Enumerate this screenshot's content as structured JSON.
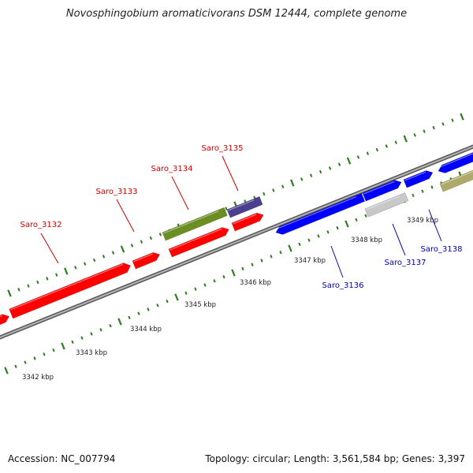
{
  "title": "Novosphingobium aromaticivorans DSM 12444, complete genome",
  "footer": {
    "accession": "Accession: NC_007794",
    "summary": "Topology: circular; Length: 3,561,584 bp; Genes: 3,397"
  },
  "colors": {
    "backbone": "#8a8a8a",
    "tick": "#2e7d1e",
    "forward_label": "#cc0000",
    "reverse_label": "#0000aa",
    "scale_text": "#222222"
  },
  "ruler_labels": [
    "3342 kbp",
    "3343 kbp",
    "3344 kbp",
    "3345 kbp",
    "3346 kbp",
    "3347 kbp",
    "3348 kbp",
    "3349 kbp"
  ],
  "features": [
    {
      "name": "",
      "color": "#ff0000"
    },
    {
      "name": "",
      "color": "#ff0000"
    },
    {
      "name": "",
      "color": "#ff0000"
    },
    {
      "name": "",
      "color": "#ff0000"
    },
    {
      "name": "",
      "color": "#ff0000"
    },
    {
      "name": "",
      "color": "#6b8e23"
    },
    {
      "name": "",
      "color": "#4b3f8f"
    },
    {
      "name": "",
      "color": "#0000ff"
    },
    {
      "name": "",
      "color": "#0000ff"
    },
    {
      "name": "",
      "color": "#0000ff"
    },
    {
      "name": "",
      "color": "#0000ff"
    },
    {
      "name": "",
      "color": "#c8c8c8"
    },
    {
      "name": "",
      "color": "#b0aa6a"
    }
  ],
  "gene_labels": [
    {
      "text": "Saro_3132",
      "strand": "forward"
    },
    {
      "text": "Saro_3133",
      "strand": "forward"
    },
    {
      "text": "Saro_3134",
      "strand": "forward"
    },
    {
      "text": "Saro_3135",
      "strand": "forward"
    },
    {
      "text": "Saro_3136",
      "strand": "reverse"
    },
    {
      "text": "Saro_3137",
      "strand": "reverse"
    },
    {
      "text": "Saro_3138",
      "strand": "reverse"
    }
  ]
}
